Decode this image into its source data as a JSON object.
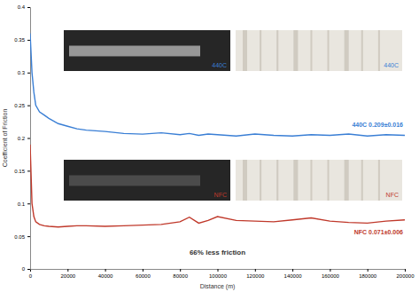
{
  "chart_data": {
    "type": "line",
    "x_label": "Distance (m)",
    "y_label": "Coefficient of Friction",
    "x": [
      0,
      1000,
      2000,
      3000,
      5000,
      7500,
      10000,
      15000,
      20000,
      25000,
      30000,
      40000,
      50000,
      60000,
      70000,
      80000,
      85000,
      90000,
      95000,
      100000,
      110000,
      120000,
      130000,
      140000,
      150000,
      160000,
      170000,
      180000,
      190000,
      200000
    ],
    "series": [
      {
        "name": "440C",
        "color": "#3a7fd5",
        "values": [
          0.36,
          0.3,
          0.27,
          0.25,
          0.24,
          0.235,
          0.23,
          0.222,
          0.218,
          0.214,
          0.212,
          0.21,
          0.207,
          0.206,
          0.208,
          0.205,
          0.207,
          0.204,
          0.206,
          0.205,
          0.203,
          0.206,
          0.204,
          0.203,
          0.205,
          0.204,
          0.206,
          0.203,
          0.205,
          0.204
        ]
      },
      {
        "name": "NFC",
        "color": "#c0392b",
        "values": [
          0.19,
          0.1,
          0.08,
          0.072,
          0.068,
          0.066,
          0.065,
          0.064,
          0.065,
          0.066,
          0.066,
          0.065,
          0.066,
          0.067,
          0.068,
          0.072,
          0.079,
          0.07,
          0.074,
          0.08,
          0.074,
          0.073,
          0.072,
          0.075,
          0.078,
          0.073,
          0.071,
          0.07,
          0.073,
          0.075
        ]
      }
    ],
    "annotations": [
      "440C  0.209±0.016",
      "NFC  0.071±0.006",
      "66% less friction"
    ],
    "xlim": [
      0,
      200000
    ],
    "xticks": [
      0,
      20000,
      40000,
      60000,
      80000,
      100000,
      120000,
      140000,
      160000,
      180000,
      200000
    ],
    "ylim": [
      0,
      0.4
    ],
    "yticks": [
      0,
      0.05,
      0.1,
      0.15,
      0.2,
      0.25,
      0.3,
      0.35,
      0.4
    ]
  }
}
